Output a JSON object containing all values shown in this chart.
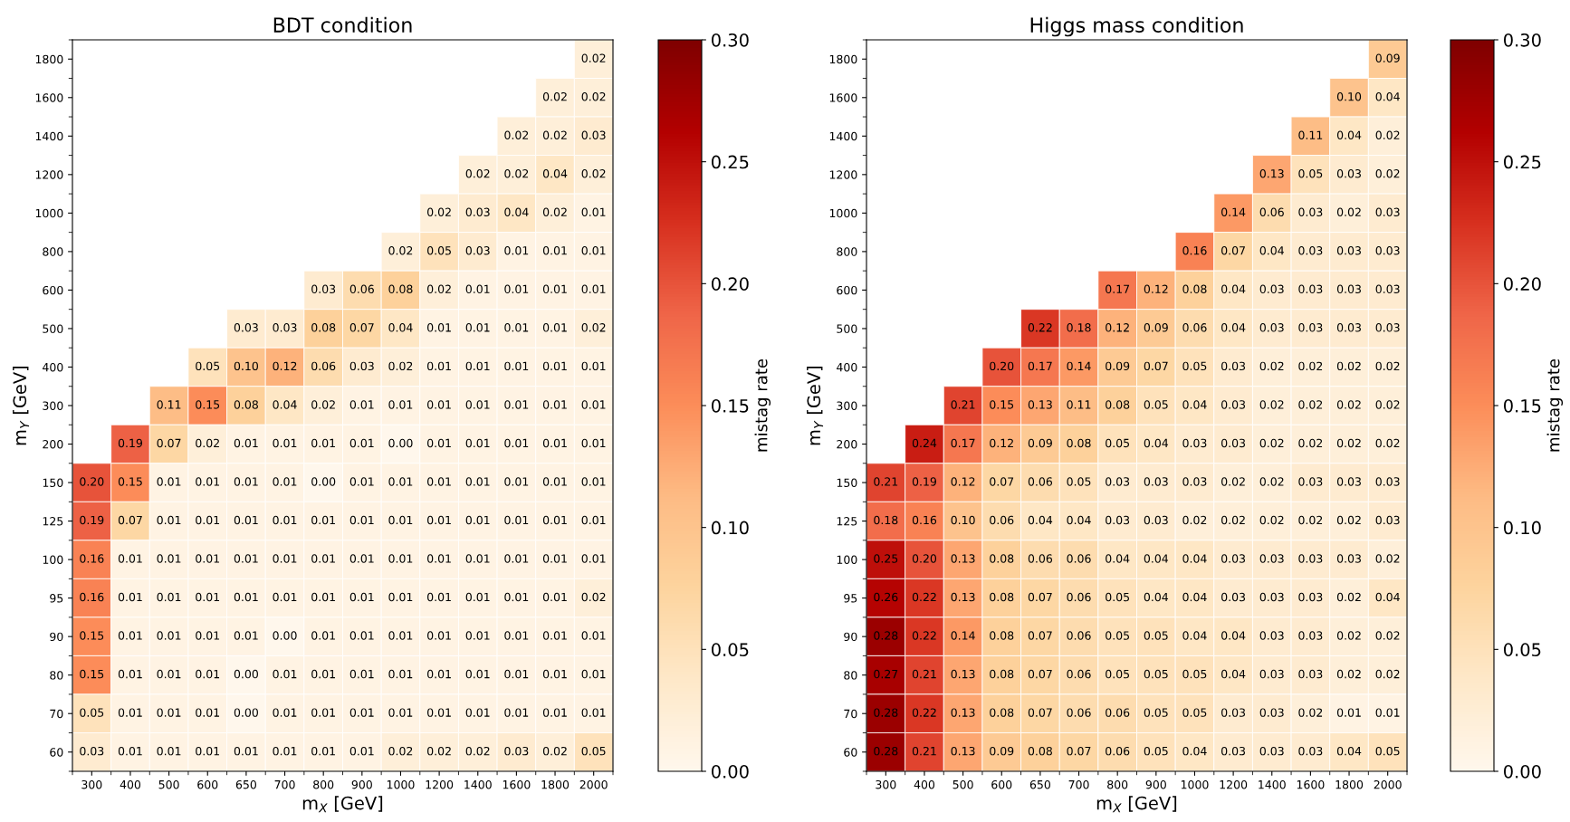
{
  "chart_data": [
    {
      "type": "heatmap",
      "title": "BDT condition",
      "xlabel": "m$_{X}$ [GeV]",
      "ylabel": "m$_{Y}$ [GeV]",
      "clabel": "mistag rate",
      "categories": [
        "300",
        "400",
        "500",
        "600",
        "650",
        "700",
        "800",
        "900",
        "1000",
        "1200",
        "1400",
        "1600",
        "1800",
        "2000"
      ],
      "y_categories": [
        "1800",
        "1600",
        "1400",
        "1200",
        "1000",
        "800",
        "600",
        "500",
        "400",
        "300",
        "200",
        "150",
        "125",
        "100",
        "95",
        "90",
        "80",
        "70",
        "60"
      ],
      "cells": [
        [
          null,
          null,
          null,
          null,
          null,
          null,
          null,
          null,
          null,
          null,
          null,
          null,
          null,
          0.02
        ],
        [
          null,
          null,
          null,
          null,
          null,
          null,
          null,
          null,
          null,
          null,
          null,
          null,
          0.02,
          0.02
        ],
        [
          null,
          null,
          null,
          null,
          null,
          null,
          null,
          null,
          null,
          null,
          null,
          0.02,
          0.02,
          0.03
        ],
        [
          null,
          null,
          null,
          null,
          null,
          null,
          null,
          null,
          null,
          null,
          0.02,
          0.02,
          0.04,
          0.02
        ],
        [
          null,
          null,
          null,
          null,
          null,
          null,
          null,
          null,
          null,
          0.02,
          0.03,
          0.04,
          0.02,
          0.01
        ],
        [
          null,
          null,
          null,
          null,
          null,
          null,
          null,
          null,
          0.02,
          0.05,
          0.03,
          0.01,
          0.01,
          0.01
        ],
        [
          null,
          null,
          null,
          null,
          null,
          null,
          0.03,
          0.06,
          0.08,
          0.02,
          0.01,
          0.01,
          0.01,
          0.01
        ],
        [
          null,
          null,
          null,
          null,
          0.03,
          0.03,
          0.08,
          0.07,
          0.04,
          0.01,
          0.01,
          0.01,
          0.01,
          0.02
        ],
        [
          null,
          null,
          null,
          0.05,
          0.1,
          0.12,
          0.06,
          0.03,
          0.02,
          0.01,
          0.01,
          0.01,
          0.01,
          0.01
        ],
        [
          null,
          null,
          0.11,
          0.15,
          0.08,
          0.04,
          0.02,
          0.01,
          0.01,
          0.01,
          0.01,
          0.01,
          0.01,
          0.01
        ],
        [
          null,
          0.19,
          0.07,
          0.02,
          0.01,
          0.01,
          0.01,
          0.01,
          0.0,
          0.01,
          0.01,
          0.01,
          0.01,
          0.01
        ],
        [
          0.2,
          0.15,
          0.01,
          0.01,
          0.01,
          0.01,
          0.0,
          0.01,
          0.01,
          0.01,
          0.01,
          0.01,
          0.01,
          0.01
        ],
        [
          0.19,
          0.07,
          0.01,
          0.01,
          0.01,
          0.01,
          0.01,
          0.01,
          0.01,
          0.01,
          0.01,
          0.01,
          0.01,
          0.01
        ],
        [
          0.16,
          0.01,
          0.01,
          0.01,
          0.01,
          0.01,
          0.01,
          0.01,
          0.01,
          0.01,
          0.01,
          0.01,
          0.01,
          0.01
        ],
        [
          0.16,
          0.01,
          0.01,
          0.01,
          0.01,
          0.01,
          0.01,
          0.01,
          0.01,
          0.01,
          0.01,
          0.01,
          0.01,
          0.02
        ],
        [
          0.15,
          0.01,
          0.01,
          0.01,
          0.01,
          0.0,
          0.01,
          0.01,
          0.01,
          0.01,
          0.01,
          0.01,
          0.01,
          0.01
        ],
        [
          0.15,
          0.01,
          0.01,
          0.01,
          0.0,
          0.01,
          0.01,
          0.01,
          0.01,
          0.01,
          0.01,
          0.01,
          0.01,
          0.01
        ],
        [
          0.05,
          0.01,
          0.01,
          0.01,
          0.0,
          0.01,
          0.01,
          0.01,
          0.01,
          0.01,
          0.01,
          0.01,
          0.01,
          0.01
        ],
        [
          0.03,
          0.01,
          0.01,
          0.01,
          0.01,
          0.01,
          0.01,
          0.01,
          0.02,
          0.02,
          0.02,
          0.03,
          0.02,
          0.05
        ]
      ],
      "cell_labels": [
        [
          null,
          null,
          null,
          null,
          null,
          null,
          null,
          null,
          null,
          null,
          null,
          null,
          null,
          "0.02"
        ],
        [
          null,
          null,
          null,
          null,
          null,
          null,
          null,
          null,
          null,
          null,
          null,
          null,
          "0.02",
          "0.02"
        ],
        [
          null,
          null,
          null,
          null,
          null,
          null,
          null,
          null,
          null,
          null,
          null,
          "0.02",
          "0.02",
          "0.03"
        ],
        [
          null,
          null,
          null,
          null,
          null,
          null,
          null,
          null,
          null,
          null,
          "0.02",
          "0.02",
          "0.04",
          "0.02"
        ],
        [
          null,
          null,
          null,
          null,
          null,
          null,
          null,
          null,
          null,
          "0.02",
          "0.03",
          "0.04",
          "0.02",
          "0.01"
        ],
        [
          null,
          null,
          null,
          null,
          null,
          null,
          null,
          null,
          "0.02",
          "0.05",
          "0.03",
          "0.01",
          "0.01",
          "0.01"
        ],
        [
          null,
          null,
          null,
          null,
          null,
          null,
          "0.03",
          "0.06",
          "0.08",
          "0.02",
          "0.01",
          "0.01",
          "0.01",
          "0.01"
        ],
        [
          null,
          null,
          null,
          null,
          "0.03",
          "0.03",
          "0.08",
          "0.07",
          "0.04",
          "0.01",
          "0.01",
          "0.01",
          "0.01",
          "0.02"
        ],
        [
          null,
          null,
          null,
          "0.05",
          "0.10",
          "0.12",
          "0.06",
          "0.03",
          "0.02",
          "0.01",
          "0.01",
          "0.01",
          "0.01",
          "0.01"
        ],
        [
          null,
          null,
          "0.11",
          "0.15",
          "0.08",
          "0.04",
          "0.02",
          "0.01",
          "0.01",
          "0.01",
          "0.01",
          "0.01",
          "0.01",
          "0.01"
        ],
        [
          null,
          "0.19",
          "0.07",
          "0.02",
          "0.01",
          "0.01",
          "0.01",
          "0.01",
          "0.00",
          "0.01",
          "0.01",
          "0.01",
          "0.01",
          "0.01"
        ],
        [
          "0.20",
          "0.15",
          "0.01",
          "0.01",
          "0.01",
          "0.01",
          "0.00",
          "0.01",
          "0.01",
          "0.01",
          "0.01",
          "0.01",
          "0.01",
          "0.01"
        ],
        [
          "0.19",
          "0.07",
          "0.01",
          "0.01",
          "0.01",
          "0.01",
          "0.01",
          "0.01",
          "0.01",
          "0.01",
          "0.01",
          "0.01",
          "0.01",
          "0.01"
        ],
        [
          "0.16",
          "0.01",
          "0.01",
          "0.01",
          "0.01",
          "0.01",
          "0.01",
          "0.01",
          "0.01",
          "0.01",
          "0.01",
          "0.01",
          "0.01",
          "0.01"
        ],
        [
          "0.16",
          "0.01",
          "0.01",
          "0.01",
          "0.01",
          "0.01",
          "0.01",
          "0.01",
          "0.01",
          "0.01",
          "0.01",
          "0.01",
          "0.01",
          "0.02"
        ],
        [
          "0.15",
          "0.01",
          "0.01",
          "0.01",
          "0.01",
          "0.00",
          "0.01",
          "0.01",
          "0.01",
          "0.01",
          "0.01",
          "0.01",
          "0.01",
          "0.01"
        ],
        [
          "0.15",
          "0.01",
          "0.01",
          "0.01",
          "0.00",
          "0.01",
          "0.01",
          "0.01",
          "0.01",
          "0.01",
          "0.01",
          "0.01",
          "0.01",
          "0.01"
        ],
        [
          "0.05",
          "0.01",
          "0.01",
          "0.01",
          "0.00",
          "0.01",
          "0.01",
          "0.01",
          "0.01",
          "0.01",
          "0.01",
          "0.01",
          "0.01",
          "0.01"
        ],
        [
          "0.03",
          "0.01",
          "0.01",
          "0.01",
          "0.01",
          "0.01",
          "0.01",
          "0.01",
          "0.02",
          "0.02",
          "0.02",
          "0.03",
          "0.02",
          "0.05"
        ]
      ],
      "data_labels": true,
      "clim": [
        0,
        0.3
      ],
      "cticks": [
        {
          "value": 0,
          "label": "0.00"
        },
        {
          "value": 0.05,
          "label": "0.05"
        },
        {
          "value": 0.1,
          "label": "0.10"
        },
        {
          "value": 0.15,
          "label": "0.15"
        },
        {
          "value": 0.2,
          "label": "0.20"
        },
        {
          "value": 0.25,
          "label": "0.25"
        },
        {
          "value": 0.3,
          "label": "0.30"
        }
      ]
    },
    {
      "type": "heatmap",
      "title": "Higgs mass condition",
      "xlabel": "m$_{X}$ [GeV]",
      "ylabel": "m$_{Y}$ [GeV]",
      "clabel": "mistag rate",
      "categories": [
        "300",
        "400",
        "500",
        "600",
        "650",
        "700",
        "800",
        "900",
        "1000",
        "1200",
        "1400",
        "1600",
        "1800",
        "2000"
      ],
      "y_categories": [
        "1800",
        "1600",
        "1400",
        "1200",
        "1000",
        "800",
        "600",
        "500",
        "400",
        "300",
        "200",
        "150",
        "125",
        "100",
        "95",
        "90",
        "80",
        "70",
        "60"
      ],
      "cells": [
        [
          null,
          null,
          null,
          null,
          null,
          null,
          null,
          null,
          null,
          null,
          null,
          null,
          null,
          0.09
        ],
        [
          null,
          null,
          null,
          null,
          null,
          null,
          null,
          null,
          null,
          null,
          null,
          null,
          0.1,
          0.04
        ],
        [
          null,
          null,
          null,
          null,
          null,
          null,
          null,
          null,
          null,
          null,
          null,
          0.11,
          0.04,
          0.02
        ],
        [
          null,
          null,
          null,
          null,
          null,
          null,
          null,
          null,
          null,
          null,
          0.13,
          0.05,
          0.03,
          0.02
        ],
        [
          null,
          null,
          null,
          null,
          null,
          null,
          null,
          null,
          null,
          0.14,
          0.06,
          0.03,
          0.02,
          0.03
        ],
        [
          null,
          null,
          null,
          null,
          null,
          null,
          null,
          null,
          0.16,
          0.07,
          0.04,
          0.03,
          0.03,
          0.03
        ],
        [
          null,
          null,
          null,
          null,
          null,
          null,
          0.17,
          0.12,
          0.08,
          0.04,
          0.03,
          0.03,
          0.03,
          0.03
        ],
        [
          null,
          null,
          null,
          null,
          0.22,
          0.18,
          0.12,
          0.09,
          0.06,
          0.04,
          0.03,
          0.03,
          0.03,
          0.03
        ],
        [
          null,
          null,
          null,
          0.2,
          0.17,
          0.14,
          0.09,
          0.07,
          0.05,
          0.03,
          0.02,
          0.02,
          0.02,
          0.02
        ],
        [
          null,
          null,
          0.21,
          0.15,
          0.13,
          0.11,
          0.08,
          0.05,
          0.04,
          0.03,
          0.02,
          0.02,
          0.02,
          0.02
        ],
        [
          null,
          0.24,
          0.17,
          0.12,
          0.09,
          0.08,
          0.05,
          0.04,
          0.03,
          0.03,
          0.02,
          0.02,
          0.02,
          0.02
        ],
        [
          0.21,
          0.19,
          0.12,
          0.07,
          0.06,
          0.05,
          0.03,
          0.03,
          0.03,
          0.02,
          0.02,
          0.03,
          0.03,
          0.03
        ],
        [
          0.18,
          0.16,
          0.1,
          0.06,
          0.04,
          0.04,
          0.03,
          0.03,
          0.02,
          0.02,
          0.02,
          0.02,
          0.02,
          0.03
        ],
        [
          0.25,
          0.2,
          0.13,
          0.08,
          0.06,
          0.06,
          0.04,
          0.04,
          0.04,
          0.03,
          0.03,
          0.03,
          0.03,
          0.02
        ],
        [
          0.26,
          0.22,
          0.13,
          0.08,
          0.07,
          0.06,
          0.05,
          0.04,
          0.04,
          0.03,
          0.03,
          0.03,
          0.02,
          0.04
        ],
        [
          0.28,
          0.22,
          0.14,
          0.08,
          0.07,
          0.06,
          0.05,
          0.05,
          0.04,
          0.04,
          0.03,
          0.03,
          0.02,
          0.02
        ],
        [
          0.27,
          0.21,
          0.13,
          0.08,
          0.07,
          0.06,
          0.05,
          0.05,
          0.05,
          0.04,
          0.03,
          0.03,
          0.02,
          0.02
        ],
        [
          0.28,
          0.22,
          0.13,
          0.08,
          0.07,
          0.06,
          0.06,
          0.05,
          0.05,
          0.03,
          0.03,
          0.02,
          0.01,
          0.01
        ],
        [
          0.28,
          0.21,
          0.13,
          0.09,
          0.08,
          0.07,
          0.06,
          0.05,
          0.04,
          0.03,
          0.03,
          0.03,
          0.04,
          0.05
        ]
      ],
      "cell_labels": [
        [
          null,
          null,
          null,
          null,
          null,
          null,
          null,
          null,
          null,
          null,
          null,
          null,
          null,
          "0.09"
        ],
        [
          null,
          null,
          null,
          null,
          null,
          null,
          null,
          null,
          null,
          null,
          null,
          null,
          "0.10",
          "0.04"
        ],
        [
          null,
          null,
          null,
          null,
          null,
          null,
          null,
          null,
          null,
          null,
          null,
          "0.11",
          "0.04",
          "0.02"
        ],
        [
          null,
          null,
          null,
          null,
          null,
          null,
          null,
          null,
          null,
          null,
          "0.13",
          "0.05",
          "0.03",
          "0.02"
        ],
        [
          null,
          null,
          null,
          null,
          null,
          null,
          null,
          null,
          null,
          "0.14",
          "0.06",
          "0.03",
          "0.02",
          "0.03"
        ],
        [
          null,
          null,
          null,
          null,
          null,
          null,
          null,
          null,
          "0.16",
          "0.07",
          "0.04",
          "0.03",
          "0.03",
          "0.03"
        ],
        [
          null,
          null,
          null,
          null,
          null,
          null,
          "0.17",
          "0.12",
          "0.08",
          "0.04",
          "0.03",
          "0.03",
          "0.03",
          "0.03"
        ],
        [
          null,
          null,
          null,
          null,
          "0.22",
          "0.18",
          "0.12",
          "0.09",
          "0.06",
          "0.04",
          "0.03",
          "0.03",
          "0.03",
          "0.03"
        ],
        [
          null,
          null,
          null,
          "0.20",
          "0.17",
          "0.14",
          "0.09",
          "0.07",
          "0.05",
          "0.03",
          "0.02",
          "0.02",
          "0.02",
          "0.02"
        ],
        [
          null,
          null,
          "0.21",
          "0.15",
          "0.13",
          "0.11",
          "0.08",
          "0.05",
          "0.04",
          "0.03",
          "0.02",
          "0.02",
          "0.02",
          "0.02"
        ],
        [
          null,
          "0.24",
          "0.17",
          "0.12",
          "0.09",
          "0.08",
          "0.05",
          "0.04",
          "0.03",
          "0.03",
          "0.02",
          "0.02",
          "0.02",
          "0.02"
        ],
        [
          "0.21",
          "0.19",
          "0.12",
          "0.07",
          "0.06",
          "0.05",
          "0.03",
          "0.03",
          "0.03",
          "0.02",
          "0.02",
          "0.03",
          "0.03",
          "0.03"
        ],
        [
          "0.18",
          "0.16",
          "0.10",
          "0.06",
          "0.04",
          "0.04",
          "0.03",
          "0.03",
          "0.02",
          "0.02",
          "0.02",
          "0.02",
          "0.02",
          "0.03"
        ],
        [
          "0.25",
          "0.20",
          "0.13",
          "0.08",
          "0.06",
          "0.06",
          "0.04",
          "0.04",
          "0.04",
          "0.03",
          "0.03",
          "0.03",
          "0.03",
          "0.02"
        ],
        [
          "0.26",
          "0.22",
          "0.13",
          "0.08",
          "0.07",
          "0.06",
          "0.05",
          "0.04",
          "0.04",
          "0.03",
          "0.03",
          "0.03",
          "0.02",
          "0.04"
        ],
        [
          "0.28",
          "0.22",
          "0.14",
          "0.08",
          "0.07",
          "0.06",
          "0.05",
          "0.05",
          "0.04",
          "0.04",
          "0.03",
          "0.03",
          "0.02",
          "0.02"
        ],
        [
          "0.27",
          "0.21",
          "0.13",
          "0.08",
          "0.07",
          "0.06",
          "0.05",
          "0.05",
          "0.05",
          "0.04",
          "0.03",
          "0.03",
          "0.02",
          "0.02"
        ],
        [
          "0.28",
          "0.22",
          "0.13",
          "0.08",
          "0.07",
          "0.06",
          "0.06",
          "0.05",
          "0.05",
          "0.03",
          "0.03",
          "0.02",
          "0.01",
          "0.01"
        ],
        [
          "0.28",
          "0.21",
          "0.13",
          "0.09",
          "0.08",
          "0.07",
          "0.06",
          "0.05",
          "0.04",
          "0.03",
          "0.03",
          "0.03",
          "0.04",
          "0.05"
        ]
      ],
      "data_labels": true,
      "clim": [
        0,
        0.3
      ],
      "cticks": [
        {
          "value": 0,
          "label": "0.00"
        },
        {
          "value": 0.05,
          "label": "0.05"
        },
        {
          "value": 0.1,
          "label": "0.10"
        },
        {
          "value": 0.15,
          "label": "0.15"
        },
        {
          "value": 0.2,
          "label": "0.20"
        },
        {
          "value": 0.25,
          "label": "0.25"
        },
        {
          "value": 0.3,
          "label": "0.30"
        }
      ]
    }
  ]
}
